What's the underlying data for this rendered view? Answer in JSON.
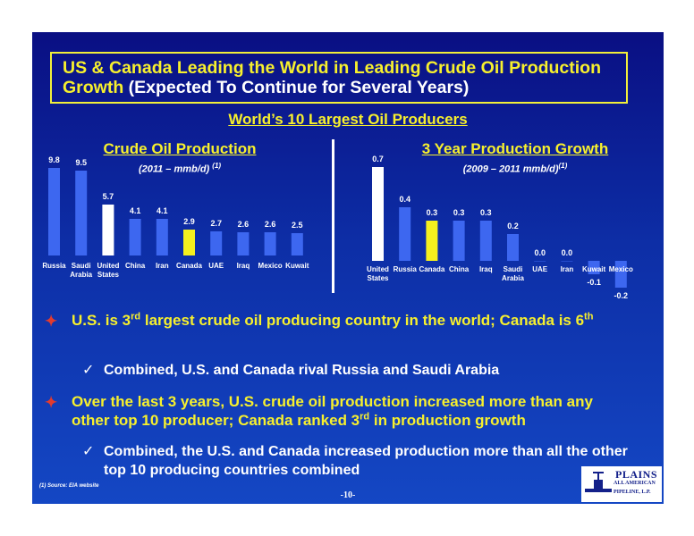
{
  "title": {
    "line1": "US & Canada Leading the World in Leading Crude Oil Production",
    "line2_highlight": "Growth",
    "line2_rest": " (Expected To Continue for Several Years)"
  },
  "subheading": "World’s 10 Largest Oil Producers",
  "charts": {
    "left": {
      "title": "Crude Oil Production",
      "subtitle": "(2011 – mmb/d)",
      "subtitle_note": "(1)"
    },
    "right": {
      "title": "3 Year Production Growth",
      "subtitle": "(2009 – 2011 mmb/d)",
      "subtitle_note": "(1)"
    }
  },
  "chart_data": [
    {
      "type": "bar",
      "title": "Crude Oil Production",
      "subtitle": "(2011 – mmb/d)",
      "categories": [
        "Russia",
        "Saudi Arabia",
        "United States",
        "China",
        "Iran",
        "Canada",
        "UAE",
        "Iraq",
        "Mexico",
        "Kuwait"
      ],
      "values": [
        9.8,
        9.5,
        5.7,
        4.1,
        4.1,
        2.9,
        2.7,
        2.6,
        2.6,
        2.5
      ],
      "value_labels": [
        "9.8",
        "9.5",
        "5.7",
        "4.1",
        "4.1",
        "2.9",
        "2.7",
        "2.6",
        "2.6",
        "2.5"
      ],
      "bar_colors": [
        "#3d67f0",
        "#3d67f0",
        "#ffffff",
        "#3d67f0",
        "#3d67f0",
        "#f5f01e",
        "#3d67f0",
        "#3d67f0",
        "#3d67f0",
        "#3d67f0"
      ],
      "ylim": [
        0,
        10
      ],
      "grid": false
    },
    {
      "type": "bar",
      "title": "3 Year Production Growth",
      "subtitle": "(2009 – 2011 mmb/d)",
      "categories": [
        "United States",
        "Russia",
        "Canada",
        "China",
        "Iraq",
        "Saudi Arabia",
        "UAE",
        "Iran",
        "Kuwait",
        "Mexico"
      ],
      "values": [
        0.7,
        0.4,
        0.3,
        0.3,
        0.3,
        0.2,
        0.0,
        0.0,
        -0.1,
        -0.2
      ],
      "value_labels": [
        "0.7",
        "0.4",
        "0.3",
        "0.3",
        "0.3",
        "0.2",
        "0.0",
        "0.0",
        "-0.1",
        "-0.2"
      ],
      "bar_colors": [
        "#ffffff",
        "#3d67f0",
        "#f5f01e",
        "#3d67f0",
        "#3d67f0",
        "#3d67f0",
        "#3d67f0",
        "#3d67f0",
        "#3d67f0",
        "#3d67f0"
      ],
      "ylim": [
        -0.2,
        0.7
      ],
      "grid": false
    }
  ],
  "bullets": [
    {
      "pre": "U.S. is 3",
      "sup": "rd",
      "post": " largest crude oil producing country in the world; Canada is 6",
      "sup2": "th",
      "post2": ""
    },
    {
      "check": "Combined, U.S. and Canada rival Russia and Saudi Arabia"
    },
    {
      "pre": "Over the last 3 years, U.S. crude oil production increased more than any other top 10 producer; Canada ranked 3",
      "sup": "rd",
      "post": " in production growth",
      "sup2": "",
      "post2": ""
    },
    {
      "check": "Combined, the U.S. and Canada increased production more than all the other top 10 producing countries combined"
    }
  ],
  "footnote": "(1) Source: EIA website",
  "page_number": "-10-",
  "logo": {
    "line1": "PLAINS",
    "line2": "ALL AMERICAN",
    "line3": "PIPELINE, L.P."
  },
  "colors": {
    "background": "#0d2ea6",
    "accent_yellow": "#f7f02d",
    "bullet_red": "#e33b2e",
    "bar_blue": "#3d67f0"
  }
}
